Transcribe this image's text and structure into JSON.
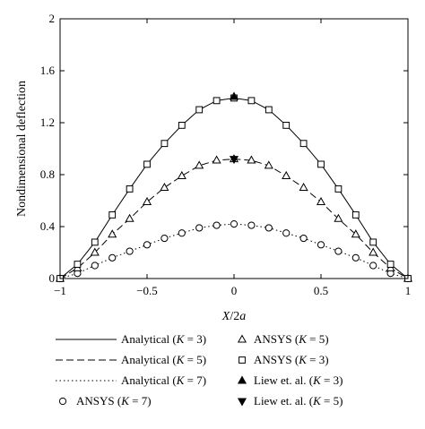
{
  "chart_data": {
    "type": "line",
    "title": "",
    "xlabel": "X/2a",
    "ylabel": "Nondimensional deflection",
    "xlim": [
      -1,
      1
    ],
    "ylim": [
      0,
      2
    ],
    "xticks": [
      -1,
      -0.5,
      0,
      0.5,
      1
    ],
    "xtick_labels": [
      "−1",
      "−0.5",
      "0",
      "0.5",
      "1"
    ],
    "yticks": [
      0,
      0.4,
      0.8,
      1.2,
      1.6,
      2
    ],
    "ytick_labels": [
      "0",
      "0.4",
      "0.8",
      "1.2",
      "1.6",
      "2"
    ],
    "grid": false,
    "legend_position": "bottom",
    "series": [
      {
        "name_pre": "Analytical (",
        "name_var": "K",
        "name_post": " = 3)",
        "style": "solid",
        "x": [
          -1,
          -0.9,
          -0.8,
          -0.7,
          -0.6,
          -0.5,
          -0.4,
          -0.3,
          -0.2,
          -0.1,
          0,
          0.1,
          0.2,
          0.3,
          0.4,
          0.5,
          0.6,
          0.7,
          0.8,
          0.9,
          1
        ],
        "y": [
          0,
          0.11,
          0.28,
          0.49,
          0.69,
          0.88,
          1.04,
          1.18,
          1.3,
          1.37,
          1.39,
          1.37,
          1.3,
          1.18,
          1.04,
          0.88,
          0.69,
          0.49,
          0.28,
          0.11,
          0
        ]
      },
      {
        "name_pre": "Analytical (",
        "name_var": "K",
        "name_post": " = 5)",
        "style": "dashed",
        "x": [
          -1,
          -0.9,
          -0.8,
          -0.7,
          -0.6,
          -0.5,
          -0.4,
          -0.3,
          -0.2,
          -0.1,
          0,
          0.1,
          0.2,
          0.3,
          0.4,
          0.5,
          0.6,
          0.7,
          0.8,
          0.9,
          1
        ],
        "y": [
          0,
          0.08,
          0.2,
          0.34,
          0.46,
          0.59,
          0.7,
          0.79,
          0.87,
          0.91,
          0.92,
          0.91,
          0.87,
          0.79,
          0.7,
          0.59,
          0.46,
          0.34,
          0.2,
          0.08,
          0
        ]
      },
      {
        "name_pre": "Analytical (",
        "name_var": "K",
        "name_post": " = 7)",
        "style": "dotted",
        "x": [
          -1,
          -0.9,
          -0.8,
          -0.7,
          -0.6,
          -0.5,
          -0.4,
          -0.3,
          -0.2,
          -0.1,
          0,
          0.1,
          0.2,
          0.3,
          0.4,
          0.5,
          0.6,
          0.7,
          0.8,
          0.9,
          1
        ],
        "y": [
          0,
          0.04,
          0.1,
          0.16,
          0.21,
          0.26,
          0.31,
          0.35,
          0.39,
          0.41,
          0.42,
          0.41,
          0.39,
          0.35,
          0.31,
          0.26,
          0.21,
          0.16,
          0.1,
          0.04,
          0
        ]
      },
      {
        "name_pre": "ANSYS (",
        "name_var": "K",
        "name_post": " = 7)",
        "marker": "circle",
        "x": [
          -1,
          -0.9,
          -0.8,
          -0.7,
          -0.6,
          -0.5,
          -0.4,
          -0.3,
          -0.2,
          -0.1,
          0,
          0.1,
          0.2,
          0.3,
          0.4,
          0.5,
          0.6,
          0.7,
          0.8,
          0.9,
          1
        ],
        "y": [
          0,
          0.04,
          0.1,
          0.16,
          0.21,
          0.26,
          0.31,
          0.35,
          0.39,
          0.41,
          0.42,
          0.41,
          0.39,
          0.35,
          0.31,
          0.26,
          0.21,
          0.16,
          0.1,
          0.04,
          0
        ]
      },
      {
        "name_pre": "ANSYS (",
        "name_var": "K",
        "name_post": " = 5)",
        "marker": "triangle",
        "x": [
          -1,
          -0.9,
          -0.8,
          -0.7,
          -0.6,
          -0.5,
          -0.4,
          -0.3,
          -0.2,
          -0.1,
          0,
          0.1,
          0.2,
          0.3,
          0.4,
          0.5,
          0.6,
          0.7,
          0.8,
          0.9,
          1
        ],
        "y": [
          0,
          0.08,
          0.2,
          0.34,
          0.46,
          0.59,
          0.7,
          0.79,
          0.87,
          0.91,
          0.92,
          0.91,
          0.87,
          0.79,
          0.7,
          0.59,
          0.46,
          0.34,
          0.2,
          0.08,
          0
        ]
      },
      {
        "name_pre": "ANSYS (",
        "name_var": "K",
        "name_post": " = 3)",
        "marker": "square",
        "x": [
          -1,
          -0.9,
          -0.8,
          -0.7,
          -0.6,
          -0.5,
          -0.4,
          -0.3,
          -0.2,
          -0.1,
          0,
          0.1,
          0.2,
          0.3,
          0.4,
          0.5,
          0.6,
          0.7,
          0.8,
          0.9,
          1
        ],
        "y": [
          0,
          0.11,
          0.28,
          0.49,
          0.69,
          0.88,
          1.04,
          1.18,
          1.3,
          1.37,
          1.39,
          1.37,
          1.3,
          1.18,
          1.04,
          0.88,
          0.69,
          0.49,
          0.28,
          0.11,
          0
        ]
      },
      {
        "name_pre": "Liew et. al. (",
        "name_var": "K",
        "name_post": " = 3)",
        "marker": "triangle-filled",
        "x": [
          0
        ],
        "y": [
          1.4
        ]
      },
      {
        "name_pre": "Liew et. al. (",
        "name_var": "K",
        "name_post": " = 5)",
        "marker": "triangle-down-filled",
        "x": [
          0
        ],
        "y": [
          0.92
        ]
      }
    ]
  }
}
